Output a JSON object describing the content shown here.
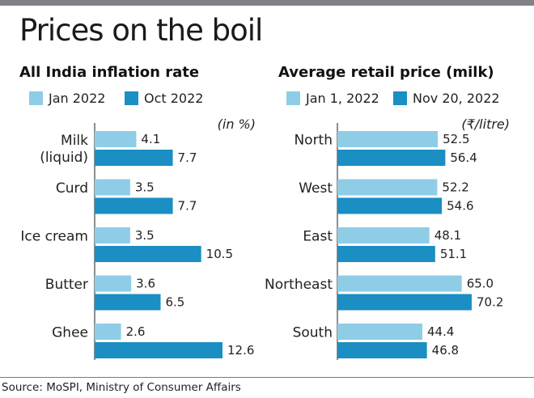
{
  "headline": "Prices on the boil",
  "source": "Source: MoSPI, Ministry of Consumer Affairs",
  "colors": {
    "light_bar": "#8fcde6",
    "dark_bar": "#1b8ec3",
    "top_bar": "#808285",
    "axis": "#444444"
  },
  "chart_data": [
    {
      "id": "inflation",
      "type": "bar",
      "orientation": "horizontal",
      "title": "All India inflation rate",
      "unit_label": "(in %)",
      "categories": [
        "Milk (liquid)",
        "Curd",
        "Ice cream",
        "Butter",
        "Ghee"
      ],
      "category_lines": [
        [
          "Milk",
          "(liquid)"
        ],
        [
          "Curd"
        ],
        [
          "Ice cream"
        ],
        [
          "Butter"
        ],
        [
          "Ghee"
        ]
      ],
      "series": [
        {
          "name": "Jan 2022",
          "color": "#8fcde6",
          "values": [
            4.1,
            3.5,
            3.5,
            3.6,
            2.6
          ]
        },
        {
          "name": "Oct 2022",
          "color": "#1b8ec3",
          "values": [
            7.7,
            7.7,
            10.5,
            6.5,
            12.6
          ]
        }
      ],
      "value_labels": [
        [
          "4.1",
          "3.5",
          "3.5",
          "3.6",
          "2.6"
        ],
        [
          "7.7",
          "7.7",
          "10.5",
          "6.5",
          "12.6"
        ]
      ],
      "xlim": [
        0,
        12.6
      ],
      "legend": "top-left",
      "grid": false
    },
    {
      "id": "milk_price",
      "type": "bar",
      "orientation": "horizontal",
      "title": "Average retail price (milk)",
      "unit_label": "(₹/litre)",
      "categories": [
        "North",
        "West",
        "East",
        "Northeast",
        "South"
      ],
      "category_lines": [
        [
          "North"
        ],
        [
          "West"
        ],
        [
          "East"
        ],
        [
          "Northeast"
        ],
        [
          "South"
        ]
      ],
      "series": [
        {
          "name": "Jan 1, 2022",
          "color": "#8fcde6",
          "values": [
            52.5,
            52.2,
            48.1,
            65.0,
            44.4
          ]
        },
        {
          "name": "Nov 20, 2022",
          "color": "#1b8ec3",
          "values": [
            56.4,
            54.6,
            51.1,
            70.2,
            46.8
          ]
        }
      ],
      "value_labels": [
        [
          "52.5",
          "52.2",
          "48.1",
          "65.0",
          "44.4"
        ],
        [
          "56.4",
          "54.6",
          "51.1",
          "70.2",
          "46.8"
        ]
      ],
      "xlim": [
        0,
        70.2
      ],
      "legend": "top-left",
      "grid": false
    }
  ]
}
